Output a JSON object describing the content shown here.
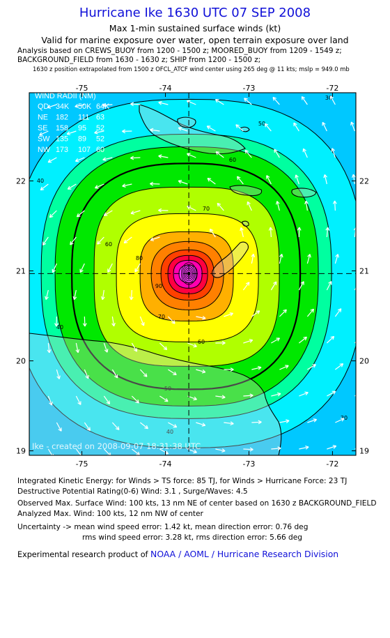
{
  "header": {
    "title": "Hurricane Ike 1630 UTC 07 SEP 2008",
    "subtitle1": "Max 1-min sustained surface winds (kt)",
    "subtitle2": "Valid for marine exposure over water, open terrain exposure over land",
    "analysis1": "Analysis based on  CREWS_BUOY from 1200 - 1500 z;  MOORED_BUOY from 1209 - 1549 z;",
    "analysis2": "BACKGROUND_FIELD from 1630 - 1630 z;  SHIP from 1200 - 1500 z;",
    "analysis3": "1630 z position extrapolated from 1500 z OFCL_ATCF wind center using 265 deg @ 11 kts; mslp = 949.0 mb"
  },
  "map": {
    "lon_ticks": [
      -75,
      -74,
      -73,
      -72
    ],
    "lon_labels": [
      "-75",
      "-74",
      "-73",
      "-72"
    ],
    "lat_ticks": [
      22,
      21,
      20,
      19
    ],
    "lat_labels": [
      "22",
      "21",
      "20",
      "19"
    ],
    "lon_range": [
      -75.63,
      -71.72
    ],
    "lat_range": [
      18.95,
      22.98
    ],
    "center": {
      "lon": -73.72,
      "lat": 20.97
    },
    "contour_labels": [
      "30",
      "40",
      "50",
      "60",
      "70",
      "80",
      "90"
    ],
    "credit": "Ike - created on 2008-09-07  18:31:38 UTC",
    "colors": {
      "cyan": "#00f0ff",
      "light_blue": "#00c8ff",
      "aqua_green": "#00ffa0",
      "green": "#00e800",
      "light_green": "#b0ff00",
      "yellow": "#ffff00",
      "orange": "#ffb000",
      "dark_orange": "#ff8000",
      "red_orange": "#ff4000",
      "red": "#ff0040",
      "magenta": "#ff00b0",
      "pink": "#ff40ff",
      "land": "#d0d0d0"
    }
  },
  "wind_radii": {
    "title": "WIND RADII (NM)",
    "header": [
      "QD",
      "34K",
      "50K",
      "64K"
    ],
    "rows": [
      [
        "NE",
        "182",
        "111",
        "63"
      ],
      [
        "SE",
        "158",
        "95",
        "52"
      ],
      [
        "SW",
        "135",
        "89",
        "52"
      ],
      [
        "NW",
        "173",
        "107",
        "60"
      ]
    ]
  },
  "footer": {
    "ike_line": "Integrated Kinetic Energy:  for Winds > TS force: 85 TJ,  for Winds > Hurricane Force: 23 TJ",
    "destructive_line": "Destructive Potential Rating(0-6)   Wind: 3.1 , Surge/Waves: 4.5",
    "observed_line": "Observed Max. Surface Wind: 100 kts, 13 nm NE of center based on 1630 z BACKGROUND_FIELD",
    "analyzed_line": "Analyzed Max. Wind: 100 kts, 12 nm NW of center",
    "uncertainty_line1": "Uncertainty -> mean wind speed error: 1.42 kt,   mean direction error: 0.76 deg",
    "uncertainty_line2": "rms wind speed error: 3.28 kt,   rms direction error: 5.66 deg",
    "product_prefix": "Experimental research product of ",
    "product_link": "NOAA / AOML / Hurricane Research Division"
  }
}
